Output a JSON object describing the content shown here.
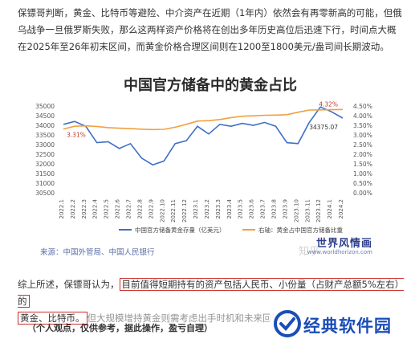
{
  "article": {
    "paragraph1": "保镖哥判断，黄金、比特币等避险、中介资产在近期（1年内）依然会有再零新高的可能，但俄乌战争一旦俄罗斯失败，那么这两样资产价格将在创出多年历史高位后迅速下行，时间点大概在2025年至26年初末区间，而黄金价格合理区间则在1200至1800美元/盎司间长期波动。",
    "paragraph2_prefix": "综上所述，保镖哥认为，",
    "paragraph2_hl1": "目前值得短期持有的资产包括人民币、小份量（占财产总额5%左右）的",
    "paragraph2_hl2": "黄金、比特币。",
    "paragraph2_suffix": "但大规模增持黄金则需考虑出手时机和未来回调风险",
    "note": "（个人观点，仅供参考，据此操作，盈亏自理）"
  },
  "chart_data": {
    "type": "line",
    "title": "中国官方储备中的黄金占比",
    "categories": [
      "2022.1",
      "2022.2",
      "2022.3",
      "2022.4",
      "2022.5",
      "2022.6",
      "2022.7",
      "2022.8",
      "2022.9",
      "2022.10",
      "2022.11",
      "2022.12",
      "2023.1",
      "2023.2",
      "2023.3",
      "2023.4",
      "2023.5",
      "2023.6",
      "2023.7",
      "2023.8",
      "2023.9",
      "2023.10",
      "2023.11",
      "2023.12",
      "2024.1",
      "2024.2"
    ],
    "series": [
      {
        "name": "中国官方储备黄金存量（亿美元）",
        "axis": "left",
        "color": "#3f6fc6",
        "values": [
          34050,
          34200,
          33950,
          33100,
          33150,
          32800,
          33050,
          32300,
          31950,
          32150,
          33050,
          33200,
          33950,
          33550,
          34050,
          33950,
          34100,
          34000,
          34150,
          33950,
          33100,
          33050,
          34150,
          34950,
          34700,
          34375.07
        ]
      },
      {
        "name": "右轴：黄金占中国官方储备比重",
        "axis": "right",
        "color": "#f0a040",
        "values": [
          3.31,
          3.45,
          3.47,
          3.44,
          3.38,
          3.35,
          3.33,
          3.3,
          3.28,
          3.29,
          3.4,
          3.55,
          3.72,
          3.74,
          3.8,
          3.9,
          3.97,
          3.99,
          4.02,
          4.03,
          4.05,
          4.18,
          4.29,
          4.3,
          4.31,
          4.32
        ]
      }
    ],
    "annotations": [
      "3.31%",
      "4.32%",
      "34375.07"
    ],
    "yleft": {
      "min": 30500,
      "max": 35000,
      "ticks": [
        "35000",
        "34500",
        "34000",
        "33500",
        "33000",
        "32500",
        "32000",
        "31500",
        "31000",
        "30500"
      ]
    },
    "yright": {
      "min": 0.0,
      "max": 4.5,
      "ticks": [
        "4.50%",
        "4.00%",
        "3.50%",
        "3.00%",
        "2.50%",
        "2.00%",
        "1.50%",
        "1.00%",
        "0.50%",
        "0.00%"
      ]
    },
    "legend_placement": "bottom",
    "grid": false,
    "source": "来源：中国外管局、中国人民银行",
    "watermark_logo": "世界风情画",
    "watermark_url": "www.worldhorizon.com",
    "zhihu_mark": "知乎"
  },
  "site_logo": {
    "text": "经典软件园",
    "color": "#1a4db8"
  }
}
